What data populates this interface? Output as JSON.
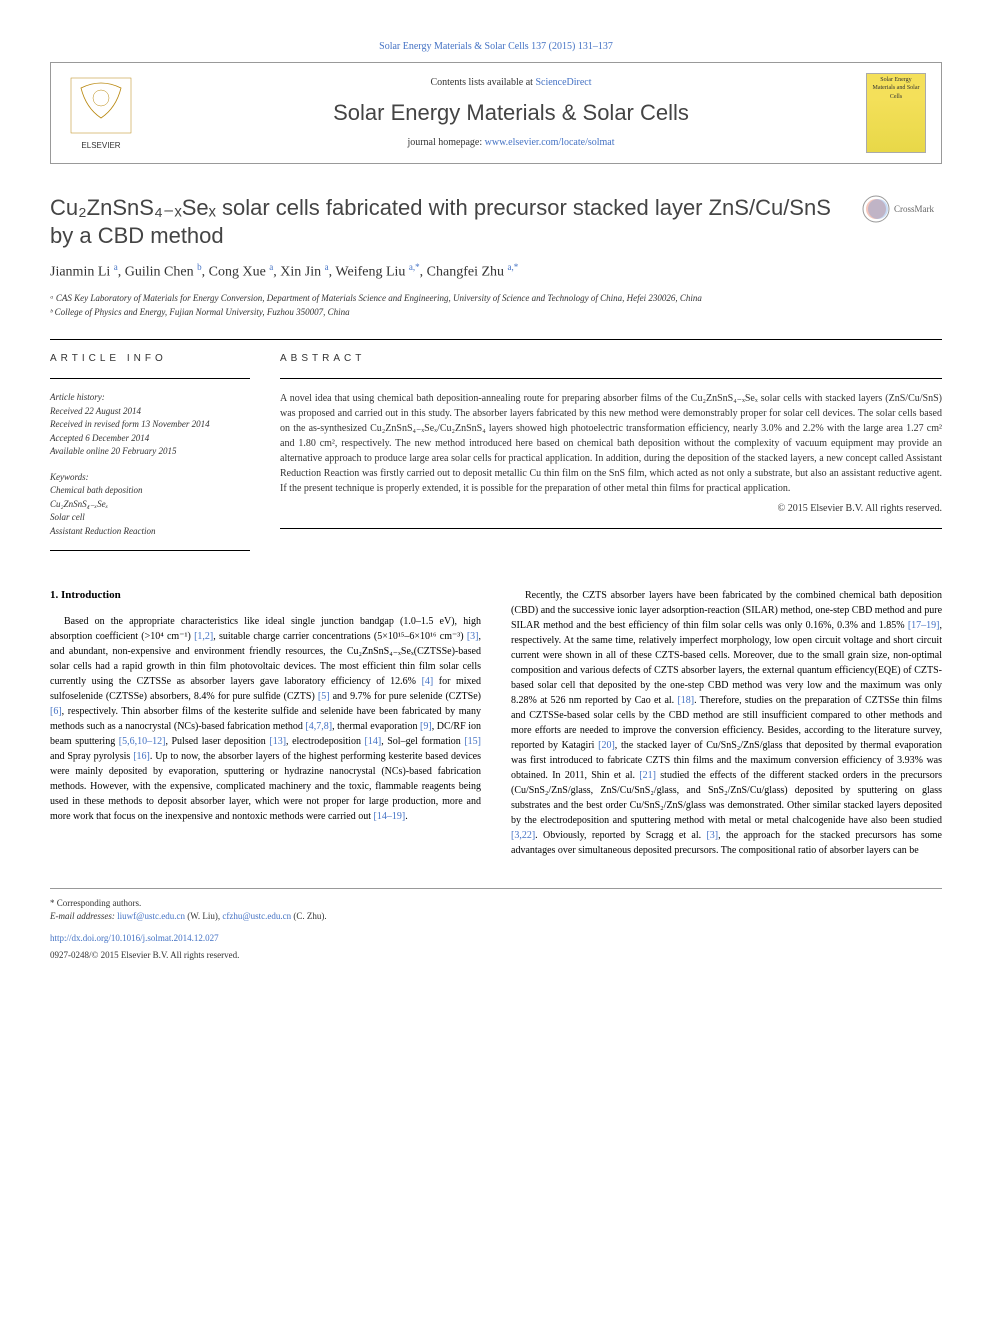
{
  "top_link": {
    "journal": "Solar Energy Materials & Solar Cells 137 (2015) 131–137"
  },
  "header": {
    "contents_text": "Contents lists available at ",
    "contents_link": "ScienceDirect",
    "journal_name": "Solar Energy Materials & Solar Cells",
    "homepage_text": "journal homepage: ",
    "homepage_link": "www.elsevier.com/locate/solmat",
    "cover_text": "Solar Energy Materials and Solar Cells"
  },
  "crossmark": "CrossMark",
  "title": "Cu₂ZnSnS₄₋ₓSeₓ solar cells fabricated with precursor stacked layer ZnS/Cu/SnS by a CBD method",
  "authors_html": "Jianmin Li <sup class='sup'>a</sup>, Guilin Chen <sup class='sup'>b</sup>, Cong Xue <sup class='sup'>a</sup>, Xin Jin <sup class='sup'>a</sup>, Weifeng Liu <sup class='sup'>a,*</sup>, Changfei Zhu <sup class='sup'>a,*</sup>",
  "affiliations": {
    "a": "ᵃ CAS Key Laboratory of Materials for Energy Conversion, Department of Materials Science and Engineering, University of Science and Technology of China, Hefei 230026, China",
    "b": "ᵇ College of Physics and Energy, Fujian Normal University, Fuzhou 350007, China"
  },
  "article_info": {
    "header": "ARTICLE INFO",
    "history_label": "Article history:",
    "received": "Received 22 August 2014",
    "revised": "Received in revised form 13 November 2014",
    "accepted": "Accepted 6 December 2014",
    "online": "Available online 20 February 2015",
    "keywords_label": "Keywords:",
    "keywords": [
      "Chemical bath deposition",
      "Cu₂ZnSnS₄₋ₓSeₓ",
      "Solar cell",
      "Assistant Reduction Reaction"
    ]
  },
  "abstract": {
    "header": "ABSTRACT",
    "text": "A novel idea that using chemical bath deposition-annealing route for preparing absorber films of the Cu₂ZnSnS₄₋ₓSeₓ solar cells with stacked layers (ZnS/Cu/SnS) was proposed and carried out in this study. The absorber layers fabricated by this new method were demonstrably proper for solar cell devices. The solar cells based on the as-synthesized Cu₂ZnSnS₄₋ₓSeₓ/Cu₂ZnSnS₄ layers showed high photoelectric transformation efficiency, nearly 3.0% and 2.2% with the large area 1.27 cm² and 1.80 cm², respectively. The new method introduced here based on chemical bath deposition without the complexity of vacuum equipment may provide an alternative approach to produce large area solar cells for practical application. In addition, during the deposition of the stacked layers, a new concept called Assistant Reduction Reaction was firstly carried out to deposit metallic Cu thin film on the SnS film, which acted as not only a substrate, but also an assistant reductive agent. If the present technique is properly extended, it is possible for the preparation of other metal thin films for practical application.",
    "copyright": "© 2015 Elsevier B.V. All rights reserved."
  },
  "section1": {
    "title": "1. Introduction",
    "para1a": "Based on the appropriate characteristics like ideal single junction bandgap (1.0–1.5 eV), high absorption coefficient (>10⁴ cm⁻¹) ",
    "ref1": "[1,2]",
    "para1b": ", suitable charge carrier concentrations (5×10¹⁵–6×10¹⁶ cm⁻³) ",
    "ref2": "[3]",
    "para1c": ", and abundant, non-expensive and environment friendly resources, the Cu₂ZnSnS₄₋ₓSeₓ(CZTSSe)-based solar cells had a rapid growth in thin film photovoltaic devices. The most efficient thin film solar cells currently using the CZTSSe as absorber layers gave laboratory efficiency of 12.6% ",
    "ref3": "[4]",
    "para1d": " for mixed sulfoselenide (CZTSSe) absorbers, 8.4% for pure sulfide (CZTS) ",
    "ref4": "[5]",
    "para1e": " and 9.7% for pure selenide (CZTSe) ",
    "ref5": "[6]",
    "para1f": ", respectively. Thin absorber films of the kesterite sulfide and selenide have been fabricated by many methods such as a nanocrystal (NCs)-based fabrication method ",
    "ref6": "[4,7,8]",
    "para1g": ", thermal evaporation ",
    "ref7": "[9]",
    "para1h": ", DC/RF ion beam sputtering ",
    "ref8": "[5,6,10–12]",
    "para1i": ", Pulsed laser deposition ",
    "ref9": "[13]",
    "para1j": ", electrodeposition ",
    "ref10": "[14]",
    "para1k": ", Sol–gel formation ",
    "ref11": "[15]",
    "para1l": " and Spray pyrolysis ",
    "ref12": "[16]",
    "para1m": ". Up to now, the absorber layers of the highest performing kesterite based devices were mainly deposited by evaporation, sputtering or hydrazine nanocrystal (NCs)-based fabrication methods. However, with the expensive, complicated machinery and the toxic, flammable reagents being used in these methods to deposit absorber layer, which were not proper for large production, more and more work that focus on the inexpensive and nontoxic methods were carried out ",
    "ref13": "[14–19]",
    "para1n": ".",
    "para2a": "Recently, the CZTS absorber layers have been fabricated by the combined chemical bath deposition (CBD) and the successive ionic layer adsorption-reaction (SILAR) method, one-step CBD method and pure SILAR method and the best efficiency of thin film solar cells was only 0.16%, 0.3% and 1.85% ",
    "ref14": "[17–19]",
    "para2b": ", respectively. At the same time, relatively imperfect morphology, low open circuit voltage and short circuit current were shown in all of these CZTS-based cells. Moreover, due to the small grain size, non-optimal composition and various defects of CZTS absorber layers, the external quantum efficiency(EQE) of CZTS-based solar cell that deposited by the one-step CBD method was very low and the maximum was only 8.28% at 526 nm reported by Cao et al. ",
    "ref15": "[18]",
    "para2c": ". Therefore, studies on the preparation of CZTSSe thin films and CZTSSe-based solar cells by the CBD method are still insufficient compared to other methods and more efforts are needed to improve the conversion efficiency. Besides, according to the literature survey, reported by Katagiri ",
    "ref16": "[20]",
    "para2d": ", the stacked layer of Cu/SnS₂/ZnS/glass that deposited by thermal evaporation was first introduced to fabricate CZTS thin films and the maximum conversion efficiency of 3.93% was obtained. In 2011, Shin et al. ",
    "ref17": "[21]",
    "para2e": " studied the effects of the different stacked orders in the precursors (Cu/SnS₂/ZnS/glass, ZnS/Cu/SnS₂/glass, and SnS₂/ZnS/Cu/glass) deposited by sputtering on glass substrates and the best order Cu/SnS₂/ZnS/glass was demonstrated. Other similar stacked layers deposited by the electrodeposition and sputtering method with metal or metal chalcogenide have also been studied ",
    "ref18": "[3,22]",
    "para2f": ". Obviously, reported by Scragg et al. ",
    "ref19": "[3]",
    "para2g": ", the approach for the stacked precursors has some advantages over simultaneous deposited precursors. The compositional ratio of absorber layers can be"
  },
  "footer": {
    "corr": "* Corresponding authors.",
    "email_label": "E-mail addresses: ",
    "email1": "liuwf@ustc.edu.cn",
    "email1_name": " (W. Liu), ",
    "email2": "cfzhu@ustc.edu.cn",
    "email2_name": " (C. Zhu).",
    "doi": "http://dx.doi.org/10.1016/j.solmat.2014.12.027",
    "copyright": "0927-0248/© 2015 Elsevier B.V. All rights reserved."
  },
  "colors": {
    "link": "#4472c4",
    "text": "#333333",
    "heading": "#444444"
  }
}
